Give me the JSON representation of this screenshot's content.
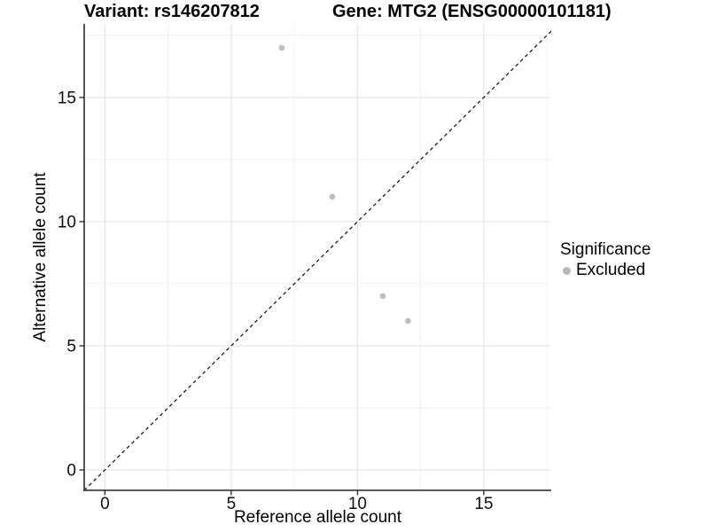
{
  "chart_data": {
    "type": "scatter",
    "title_left": "Variant: rs146207812",
    "title_right": "Gene: MTG2 (ENSG00000101181)",
    "xlabel": "Reference allele count",
    "ylabel": "Alternative allele count",
    "xlim": [
      -0.82,
      17.67
    ],
    "ylim": [
      -0.82,
      17.96
    ],
    "xticks": [
      0,
      5,
      10,
      15
    ],
    "yticks": [
      0,
      5,
      10,
      15
    ],
    "xminor": [
      2.5,
      7.5,
      12.5,
      17.5
    ],
    "yminor": [
      2.5,
      7.5,
      12.5,
      17.5
    ],
    "grid": "major and minor gridlines on white background",
    "legend": {
      "title": "Significance",
      "position": "right",
      "items": [
        {
          "label": "Excluded",
          "color": "#b9b9b9"
        }
      ]
    },
    "series": [
      {
        "name": "Excluded",
        "color": "#bdbdbd",
        "marker": "circle",
        "points": [
          [
            7,
            17
          ],
          [
            9,
            11
          ],
          [
            11,
            7
          ],
          [
            12,
            6
          ]
        ]
      }
    ],
    "reference_line": {
      "equation": "y = x",
      "style": "dashed",
      "color": "#1a1a1a"
    },
    "style": {
      "grid_major_color": "#e5e5e5",
      "grid_minor_color": "#efefef",
      "axis_line_color": "#404040",
      "tick_color": "#333333",
      "text_color": "#0d0d0d",
      "background": "#ffffff"
    }
  }
}
